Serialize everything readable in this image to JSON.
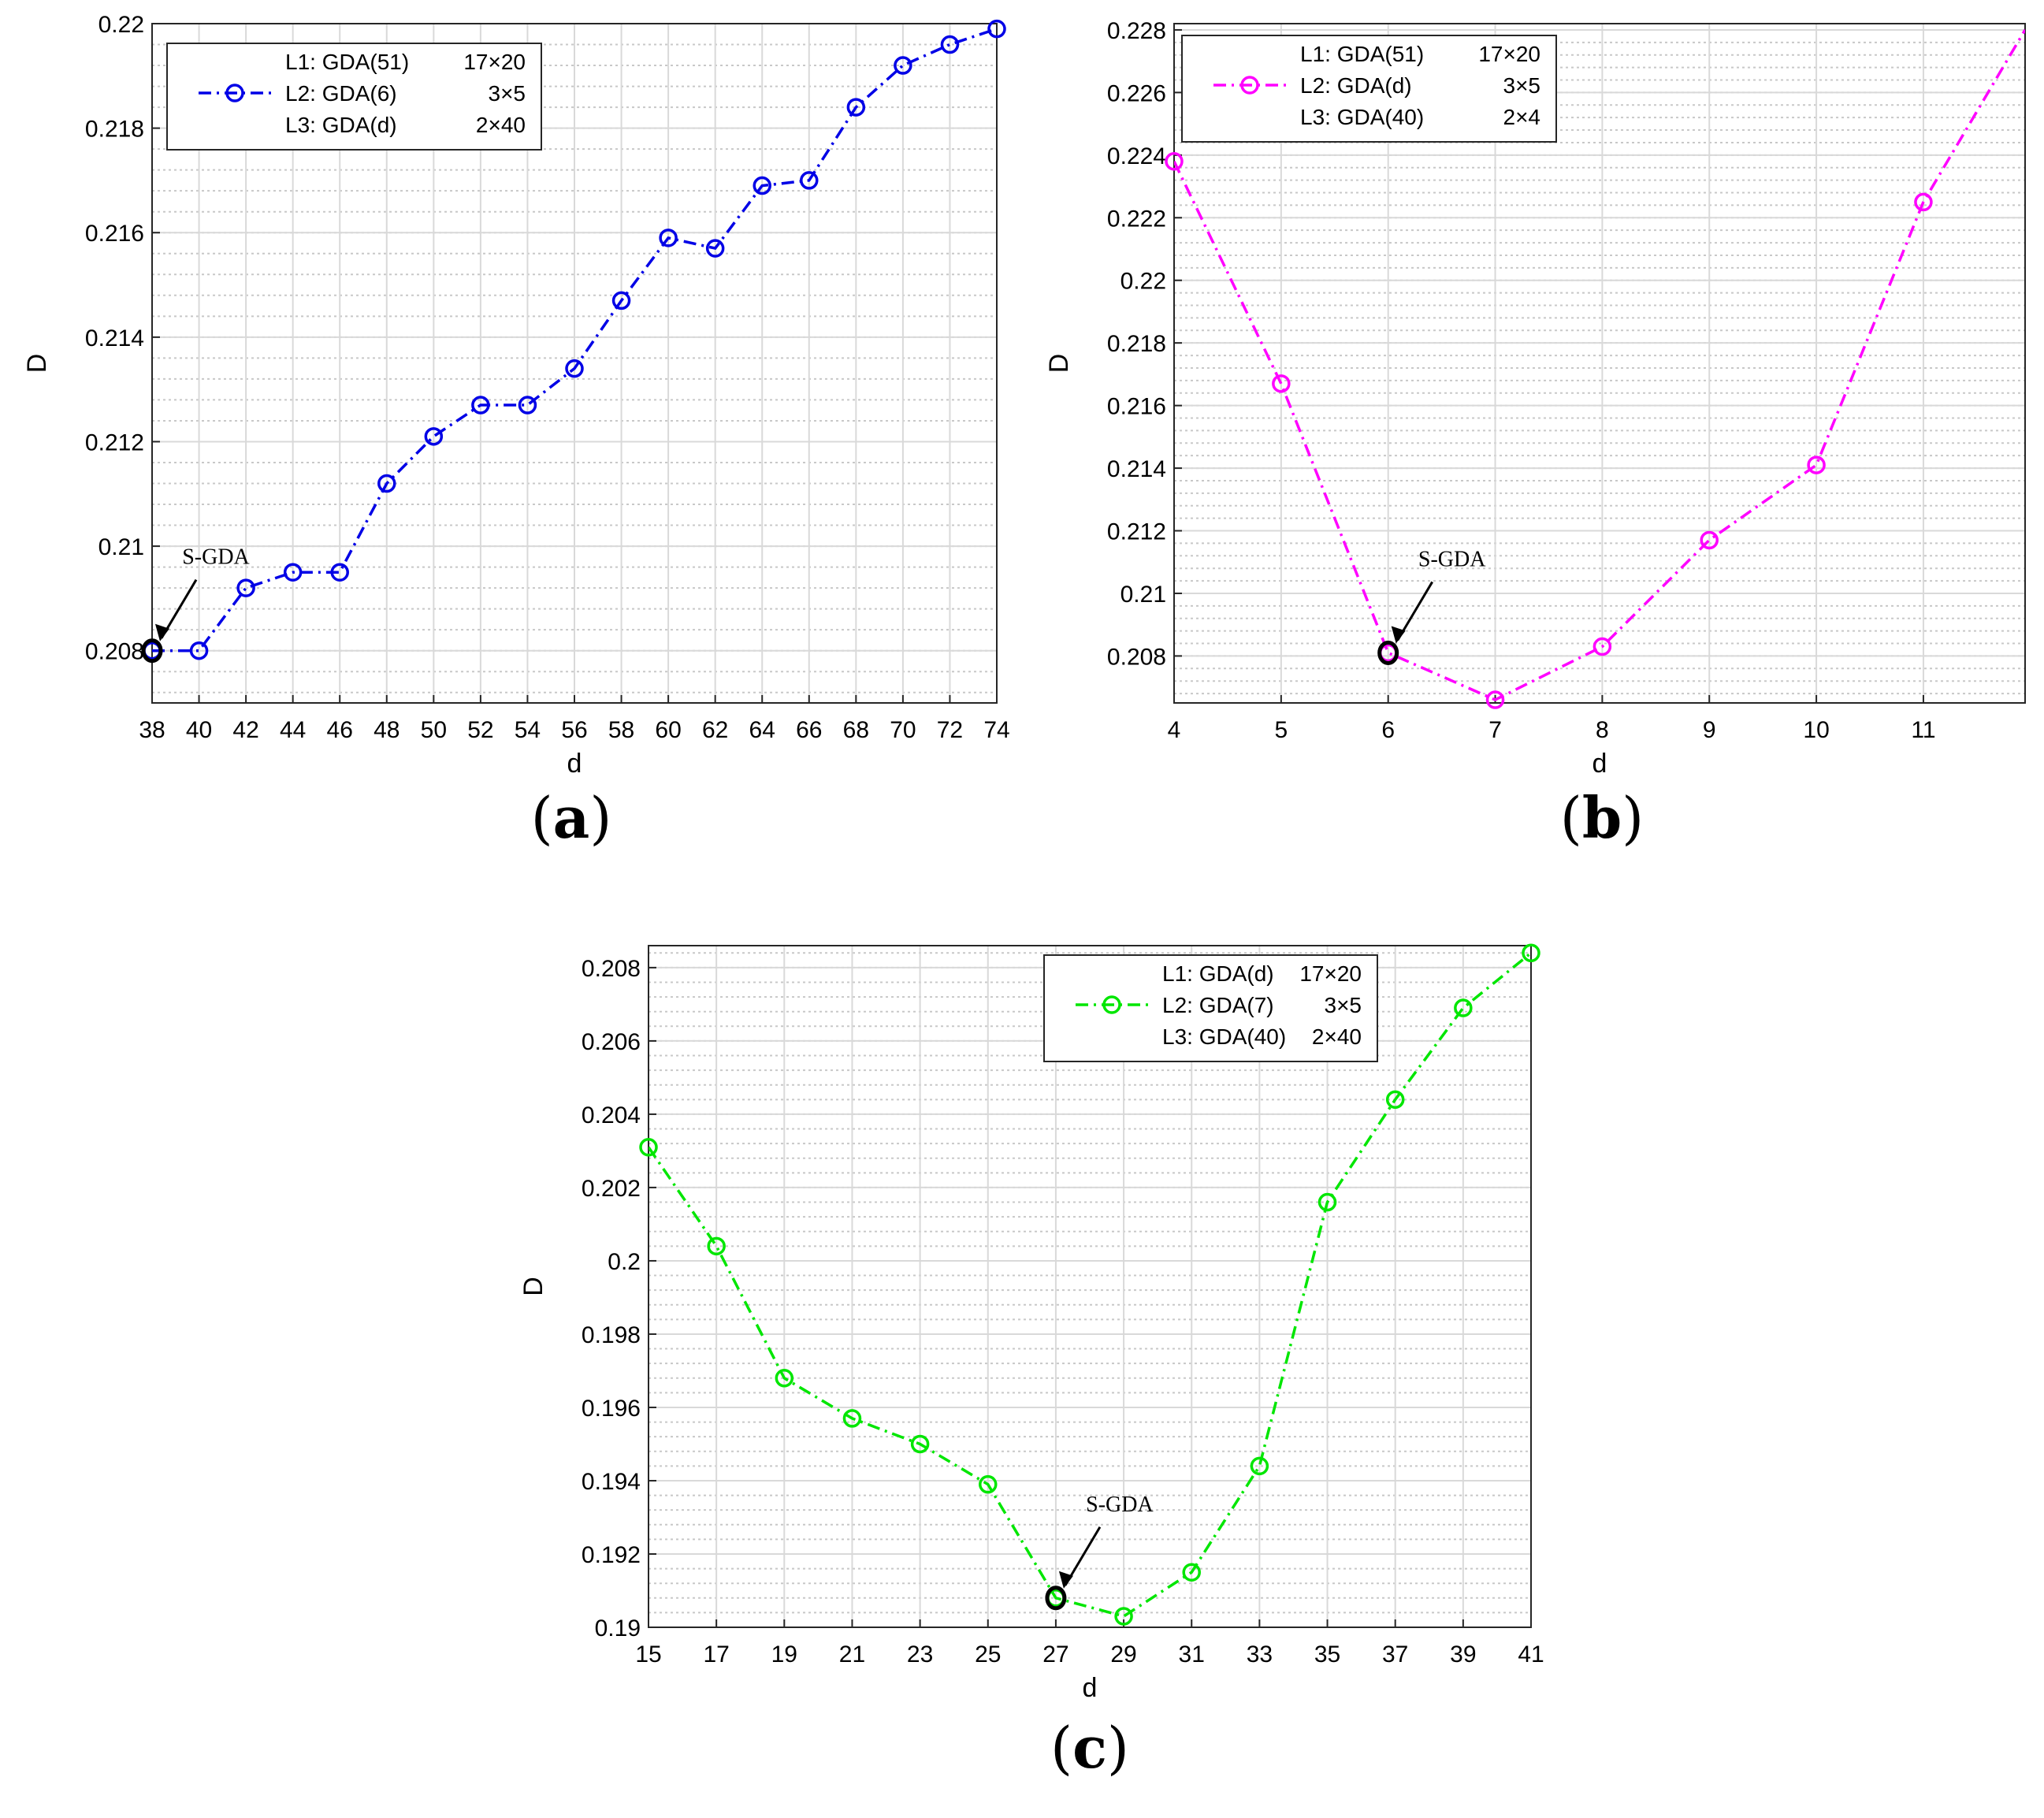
{
  "chart_data": [
    {
      "id": "a",
      "type": "line",
      "caption": "a",
      "xlabel": "d",
      "ylabel": "D",
      "xlim": [
        38,
        74
      ],
      "ylim": [
        0.207,
        0.22
      ],
      "xticks": [
        "38",
        "40",
        "42",
        "44",
        "46",
        "48",
        "50",
        "52",
        "54",
        "56",
        "58",
        "60",
        "62",
        "64",
        "66",
        "68",
        "70",
        "72",
        "74"
      ],
      "yticks": [
        "0.208",
        "0.21",
        "0.212",
        "0.214",
        "0.216",
        "0.218",
        "0.22"
      ],
      "ytick_values": [
        0.208,
        0.21,
        0.212,
        0.214,
        0.216,
        0.218,
        0.22
      ],
      "grid": true,
      "color": "#0000e6",
      "series": [
        {
          "name": "L2: GDA(6)",
          "x": [
            38,
            40,
            42,
            44,
            46,
            48,
            50,
            52,
            54,
            56,
            58,
            60,
            62,
            64,
            66,
            68,
            70,
            72,
            74
          ],
          "values": [
            0.208,
            0.208,
            0.2092,
            0.2095,
            0.2095,
            0.2112,
            0.2121,
            0.2127,
            0.2127,
            0.2134,
            0.2147,
            0.2159,
            0.2157,
            0.2169,
            0.217,
            0.2184,
            0.2192,
            0.2196,
            0.2199
          ]
        }
      ],
      "legend": {
        "position": "top-left",
        "entries": [
          {
            "label": "L1: GDA(51)",
            "dims": "17×20",
            "marker": false
          },
          {
            "label": "L2: GDA(6)",
            "dims": "3×5",
            "marker": true
          },
          {
            "label": "L3: GDA(d)",
            "dims": "2×40",
            "marker": false
          }
        ]
      },
      "annotation": {
        "text": "S-GDA",
        "x": 38,
        "y": 0.208
      }
    },
    {
      "id": "b",
      "type": "line",
      "caption": "b",
      "xlabel": "d",
      "ylabel": "D",
      "xlim": [
        4,
        11.95
      ],
      "ylim": [
        0.2065,
        0.2282
      ],
      "xticks": [
        "4",
        "5",
        "6",
        "7",
        "8",
        "9",
        "10",
        "11"
      ],
      "yticks": [
        "0.208",
        "0.21",
        "0.212",
        "0.214",
        "0.216",
        "0.218",
        "0.22",
        "0.222",
        "0.224",
        "0.226",
        "0.228"
      ],
      "ytick_values": [
        0.208,
        0.21,
        0.212,
        0.214,
        0.216,
        0.218,
        0.22,
        0.222,
        0.224,
        0.226,
        0.228
      ],
      "grid": true,
      "color": "#ff00ff",
      "series": [
        {
          "name": "L2: GDA(d)",
          "x": [
            4,
            5,
            6,
            7,
            8,
            9,
            10,
            11,
            11.95
          ],
          "values": [
            0.2238,
            0.2167,
            0.2081,
            0.2066,
            0.2083,
            0.2117,
            0.2141,
            0.2225,
            0.228
          ],
          "marked_points": 8
        }
      ],
      "legend": {
        "position": "top-left",
        "entries": [
          {
            "label": "L1: GDA(51)",
            "dims": "17×20",
            "marker": false
          },
          {
            "label": "L2: GDA(d)",
            "dims": "3×5",
            "marker": true
          },
          {
            "label": "L3: GDA(40)",
            "dims": "2×4",
            "marker": false
          }
        ]
      },
      "annotation": {
        "text": "S-GDA",
        "x": 6,
        "y": 0.2081
      }
    },
    {
      "id": "c",
      "type": "line",
      "caption": "c",
      "xlabel": "d",
      "ylabel": "D",
      "xlim": [
        15,
        41
      ],
      "ylim": [
        0.19,
        0.2086
      ],
      "xticks": [
        "15",
        "17",
        "19",
        "21",
        "23",
        "25",
        "27",
        "29",
        "31",
        "33",
        "35",
        "37",
        "39",
        "41"
      ],
      "yticks": [
        "0.19",
        "0.192",
        "0.194",
        "0.196",
        "0.198",
        "0.2",
        "0.202",
        "0.204",
        "0.206",
        "0.208"
      ],
      "ytick_values": [
        0.19,
        0.192,
        0.194,
        0.196,
        0.198,
        0.2,
        0.202,
        0.204,
        0.206,
        0.208
      ],
      "grid": true,
      "color": "#00e600",
      "series": [
        {
          "name": "L2: GDA(7)",
          "x": [
            15,
            17,
            19,
            21,
            23,
            25,
            27,
            29,
            31,
            33,
            35,
            37,
            39,
            41
          ],
          "values": [
            0.2031,
            0.2004,
            0.1968,
            0.1957,
            0.195,
            0.1939,
            0.1908,
            0.1903,
            0.1915,
            0.1944,
            0.2016,
            0.2044,
            0.2069,
            0.2084
          ]
        }
      ],
      "legend": {
        "position": "top-right",
        "entries": [
          {
            "label": "L1: GDA(d)",
            "dims": "17×20",
            "marker": false
          },
          {
            "label": "L2: GDA(7)",
            "dims": "3×5",
            "marker": true
          },
          {
            "label": "L3: GDA(40)",
            "dims": "2×40",
            "marker": false
          }
        ]
      },
      "annotation": {
        "text": "S-GDA",
        "x": 27,
        "y": 0.1908
      }
    }
  ]
}
